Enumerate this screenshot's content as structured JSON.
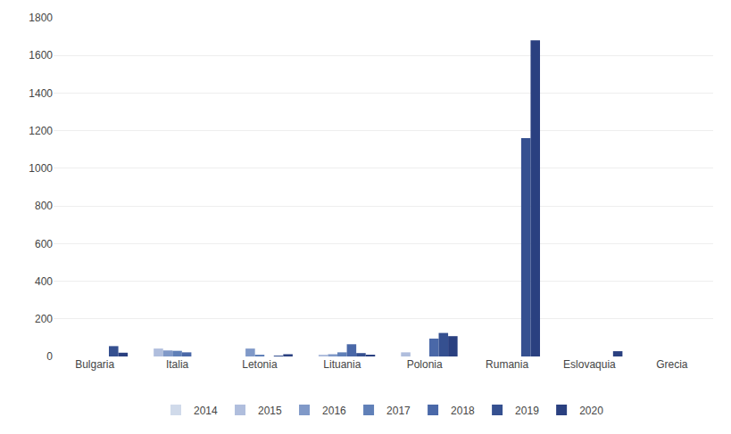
{
  "chart_data": {
    "type": "bar",
    "categories": [
      "Bulgaria",
      "Italia",
      "Letonia",
      "Lituania",
      "Polonia",
      "Rumania",
      "Eslovaquia",
      "Grecia"
    ],
    "series": [
      {
        "name": "2014",
        "color": "#d0daea",
        "values": [
          0,
          0,
          0,
          0,
          0,
          0,
          0,
          0
        ]
      },
      {
        "name": "2015",
        "color": "#b0bedd",
        "values": [
          0,
          42,
          0,
          5,
          22,
          0,
          0,
          0
        ]
      },
      {
        "name": "2016",
        "color": "#8099c8",
        "values": [
          0,
          32,
          42,
          12,
          0,
          0,
          0,
          0
        ]
      },
      {
        "name": "2017",
        "color": "#6080b8",
        "values": [
          0,
          30,
          8,
          22,
          0,
          0,
          0,
          0
        ]
      },
      {
        "name": "2018",
        "color": "#4a68a8",
        "values": [
          0,
          22,
          0,
          65,
          95,
          0,
          0,
          0
        ]
      },
      {
        "name": "2019",
        "color": "#355090",
        "values": [
          55,
          0,
          2,
          18,
          125,
          1160,
          0,
          0
        ]
      },
      {
        "name": "2020",
        "color": "#2a4080",
        "values": [
          20,
          0,
          12,
          5,
          108,
          1680,
          28,
          0
        ]
      }
    ],
    "ylim": [
      0,
      1800
    ],
    "yticks": [
      0,
      200,
      400,
      600,
      800,
      1000,
      1200,
      1400,
      1600,
      1800
    ],
    "grid": true,
    "legend": "bottom"
  }
}
